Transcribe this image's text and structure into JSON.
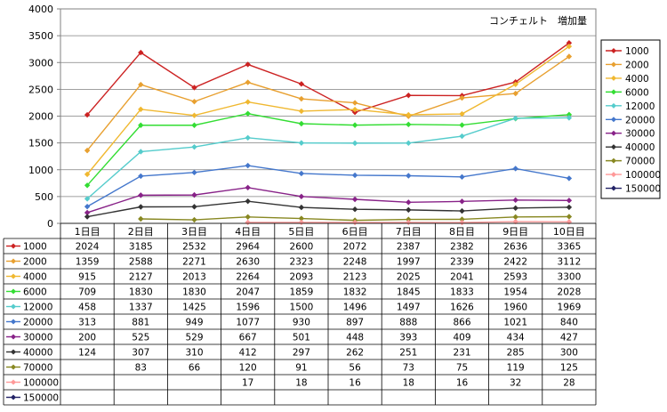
{
  "chart_data": {
    "type": "line",
    "title": "コンチェルト　増加量",
    "categories": [
      "1日目",
      "2日目",
      "3日目",
      "4日目",
      "5日目",
      "6日目",
      "7日目",
      "8日目",
      "9日目",
      "10日目"
    ],
    "ylim": [
      0,
      4000
    ],
    "yticks": [
      0,
      500,
      1000,
      1500,
      2000,
      2500,
      3000,
      3500,
      4000
    ],
    "grid": true,
    "legend_position": "right",
    "series": [
      {
        "name": "1000",
        "color": "#cc2222",
        "values": [
          2024,
          3185,
          2532,
          2964,
          2600,
          2072,
          2387,
          2382,
          2636,
          3365
        ]
      },
      {
        "name": "2000",
        "color": "#e8a030",
        "values": [
          1359,
          2588,
          2271,
          2630,
          2323,
          2248,
          1997,
          2339,
          2422,
          3112
        ]
      },
      {
        "name": "4000",
        "color": "#f0b830",
        "values": [
          915,
          2127,
          2013,
          2264,
          2093,
          2123,
          2025,
          2041,
          2593,
          3300
        ]
      },
      {
        "name": "6000",
        "color": "#33dd33",
        "values": [
          709,
          1830,
          1830,
          2047,
          1859,
          1832,
          1845,
          1833,
          1954,
          2028
        ]
      },
      {
        "name": "12000",
        "color": "#55cccc",
        "values": [
          458,
          1337,
          1425,
          1596,
          1500,
          1496,
          1497,
          1626,
          1960,
          1969
        ]
      },
      {
        "name": "20000",
        "color": "#4477cc",
        "values": [
          313,
          881,
          949,
          1077,
          930,
          897,
          888,
          866,
          1021,
          840
        ]
      },
      {
        "name": "30000",
        "color": "#882288",
        "values": [
          200,
          525,
          529,
          667,
          501,
          448,
          393,
          409,
          434,
          427
        ]
      },
      {
        "name": "40000",
        "color": "#333333",
        "values": [
          124,
          307,
          310,
          412,
          297,
          262,
          251,
          231,
          285,
          300
        ]
      },
      {
        "name": "70000",
        "color": "#888822",
        "values": [
          null,
          83,
          66,
          120,
          91,
          56,
          73,
          75,
          119,
          125
        ]
      },
      {
        "name": "100000",
        "color": "#ff9999",
        "values": [
          null,
          null,
          null,
          17,
          18,
          16,
          18,
          16,
          32,
          28
        ]
      },
      {
        "name": "150000",
        "color": "#222266",
        "values": [
          null,
          null,
          null,
          null,
          null,
          null,
          null,
          null,
          null,
          null
        ]
      }
    ]
  }
}
